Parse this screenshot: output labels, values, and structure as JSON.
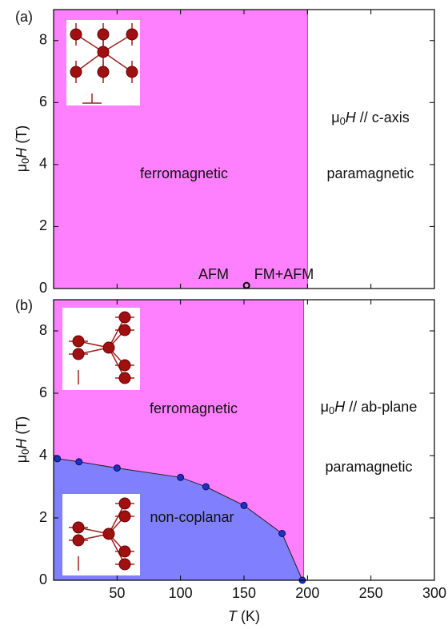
{
  "chart_data": [
    {
      "type": "phase",
      "panel_label": "(a)",
      "xlim": [
        0,
        300
      ],
      "ylim": [
        0,
        9
      ],
      "xticks": [
        50,
        100,
        150,
        200,
        250,
        300
      ],
      "yticks": [
        0,
        2,
        4,
        6,
        8
      ],
      "ylabel": [
        "μ",
        "0",
        "H",
        " (T)"
      ],
      "fm_boundary_x": 200,
      "fm_color": "#ff80ff",
      "field_label": [
        "μ",
        "0",
        "H",
        " // c-axis"
      ],
      "annotations": [
        "ferromagnetic",
        "paramagnetic",
        "AFM",
        "FM+AFM"
      ],
      "points": {
        "x": [
          152
        ],
        "y": [
          0.1
        ]
      }
    },
    {
      "type": "phase",
      "panel_label": "(b)",
      "xlim": [
        0,
        300
      ],
      "ylim": [
        0,
        9
      ],
      "xticks": [
        50,
        100,
        150,
        200,
        250,
        300
      ],
      "yticks": [
        0,
        2,
        4,
        6,
        8
      ],
      "ylabel": [
        "μ",
        "0",
        "H",
        " (T)"
      ],
      "xlabel": [
        "T",
        " (K)"
      ],
      "fm_boundary_x": 197,
      "fm_color": "#ff80ff",
      "field_label": [
        "μ",
        "0",
        "H",
        " // ab-plane"
      ],
      "annotations": [
        "ferromagnetic",
        "paramagnetic",
        "non-coplanar"
      ],
      "boundary": {
        "name": "non-coplanar",
        "color": "#8080ff",
        "x": [
          3,
          20,
          50,
          100,
          120,
          150,
          180,
          196
        ],
        "y": [
          3.9,
          3.8,
          3.6,
          3.3,
          3.0,
          2.4,
          1.5,
          0
        ]
      }
    }
  ]
}
